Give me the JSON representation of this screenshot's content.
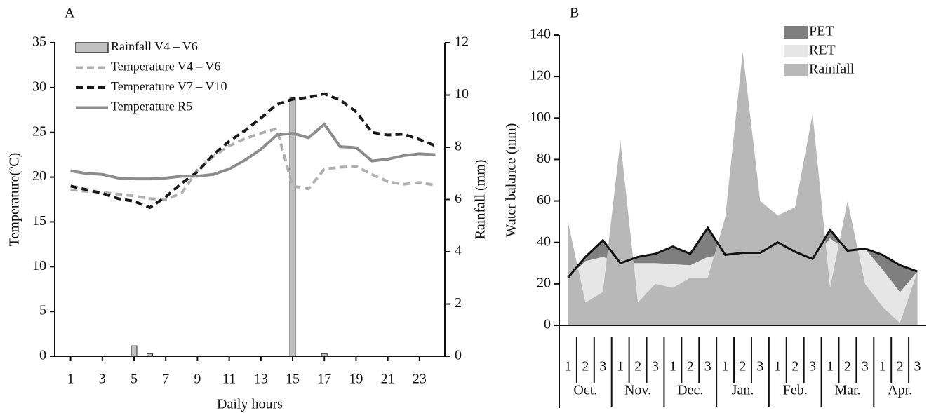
{
  "chart_data": [
    {
      "type": "line",
      "label": "A",
      "x": [
        1,
        2,
        3,
        4,
        5,
        6,
        7,
        8,
        9,
        10,
        11,
        12,
        13,
        14,
        15,
        16,
        17,
        18,
        19,
        20,
        21,
        22,
        23,
        24
      ],
      "series": [
        {
          "name": "Rainfall V4 – V6",
          "type": "bar",
          "axis": "y2",
          "color": "#c0c0c0",
          "dash": false,
          "values": [
            0,
            0,
            0,
            0,
            0.4,
            0.1,
            0,
            0,
            0,
            0,
            0,
            0,
            0,
            0,
            9.9,
            0,
            0.1,
            0,
            0,
            0,
            0,
            0,
            0,
            0
          ]
        },
        {
          "name": "Temperature V4 – V6",
          "type": "line",
          "color": "#b0b0b0",
          "dash": true,
          "values": [
            18.6,
            18.4,
            18.3,
            18.1,
            17.9,
            17.6,
            17.5,
            18.2,
            20.8,
            22.3,
            23.5,
            24.3,
            24.9,
            25.4,
            19.0,
            18.7,
            20.9,
            21.1,
            21.2,
            20.3,
            19.5,
            19.2,
            19.4,
            19.1
          ]
        },
        {
          "name": "Temperature V7 – V10",
          "type": "line",
          "color": "#1a1a1a",
          "dash": true,
          "values": [
            19.0,
            18.6,
            18.2,
            17.6,
            17.3,
            16.6,
            17.8,
            19.3,
            20.6,
            22.5,
            24.0,
            25.2,
            26.6,
            28.1,
            28.7,
            28.9,
            29.3,
            28.6,
            27.3,
            25.0,
            24.7,
            24.8,
            24.2,
            23.5
          ]
        },
        {
          "name": "Temperature R5",
          "type": "line",
          "color": "#8c8c8c",
          "dash": false,
          "values": [
            20.7,
            20.4,
            20.3,
            19.9,
            19.8,
            19.8,
            19.9,
            20.1,
            20.1,
            20.3,
            20.9,
            21.9,
            23.1,
            24.7,
            24.9,
            24.4,
            25.9,
            23.4,
            23.3,
            21.8,
            22.0,
            22.4,
            22.6,
            22.5
          ]
        }
      ],
      "xlim": [
        0,
        24.6
      ],
      "xticks": [
        1,
        3,
        5,
        7,
        9,
        11,
        13,
        15,
        17,
        19,
        21,
        23
      ],
      "ylim": [
        0,
        35
      ],
      "yticks": [
        0,
        5,
        10,
        15,
        20,
        25,
        30,
        35
      ],
      "y2lim": [
        0,
        12
      ],
      "y2ticks": [
        0,
        2,
        4,
        6,
        8,
        10,
        12
      ],
      "xlabel": "Daily hours",
      "ylabel": "Temperature(ºC)",
      "y2label": "Rainfall (mm)",
      "legend": "upper left"
    },
    {
      "type": "area",
      "label": "B",
      "categories": [
        "1",
        "2",
        "3",
        "1",
        "2",
        "3",
        "1",
        "2",
        "3",
        "1",
        "2",
        "3",
        "1",
        "2",
        "3",
        "1",
        "2",
        "3",
        "1",
        "2",
        "3"
      ],
      "groups": [
        "Oct.",
        "Nov.",
        "Dec.",
        "Jan.",
        "Feb.",
        "Mar.",
        "Apr."
      ],
      "series": [
        {
          "name": "PET",
          "color": "#7f7f7f",
          "line_color": "#111111",
          "values": [
            23,
            33,
            41,
            30,
            33,
            34.5,
            38,
            34.5,
            47,
            34,
            35,
            35,
            40,
            35.5,
            32,
            46,
            36,
            37,
            34,
            29,
            26
          ]
        },
        {
          "name": "RET",
          "color": "#e6e6e6",
          "values": [
            23,
            31,
            33,
            30,
            30,
            30,
            29.5,
            29,
            33,
            34,
            35,
            35,
            40,
            35.5,
            32,
            42,
            36,
            37,
            27,
            16,
            26
          ]
        },
        {
          "name": "Rainfall",
          "color": "#b8b8b8",
          "values": [
            50,
            11,
            16,
            89,
            11,
            20,
            18,
            23,
            23,
            52,
            132,
            60,
            53,
            57,
            102,
            18,
            60,
            20,
            9,
            1,
            26
          ]
        }
      ],
      "ylim": [
        0,
        140
      ],
      "yticks": [
        0,
        20,
        40,
        60,
        80,
        100,
        120,
        140
      ],
      "ylabel": "Water balance (mm)",
      "legend": "upper right"
    }
  ]
}
